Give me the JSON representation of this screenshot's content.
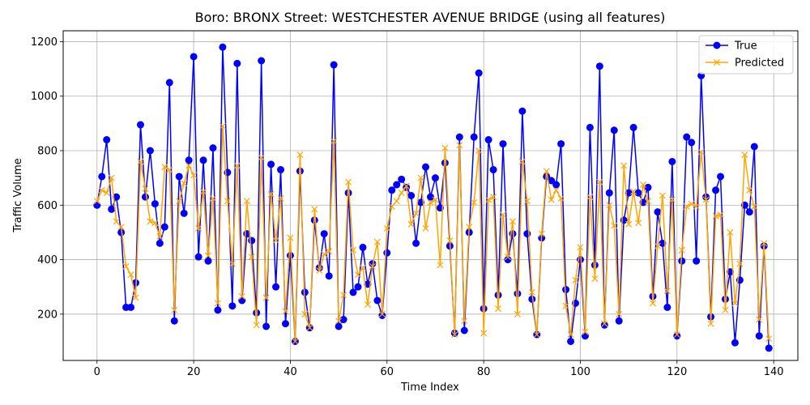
{
  "chart_data": {
    "type": "line",
    "title": "Boro: BRONX Street: WESTCHESTER AVENUE BRIDGE (using all features)",
    "xlabel": "Time Index",
    "ylabel": "Traffic Volume",
    "xlim": [
      -7,
      145
    ],
    "ylim": [
      30,
      1240
    ],
    "xticks": [
      0,
      20,
      40,
      60,
      80,
      100,
      120,
      140
    ],
    "yticks": [
      200,
      400,
      600,
      800,
      1000,
      1200
    ],
    "grid": true,
    "legend_position": "upper-right",
    "series": [
      {
        "name": "True",
        "color": "#0000ff",
        "marker": "circle",
        "values": [
          600,
          705,
          840,
          585,
          630,
          500,
          225,
          225,
          315,
          895,
          630,
          800,
          605,
          460,
          520,
          1050,
          175,
          705,
          570,
          765,
          1145,
          410,
          765,
          395,
          810,
          215,
          1180,
          720,
          230,
          1120,
          250,
          495,
          470,
          205,
          1130,
          155,
          750,
          300,
          730,
          165,
          415,
          100,
          725,
          280,
          150,
          545,
          370,
          495,
          340,
          1115,
          155,
          180,
          645,
          280,
          300,
          445,
          310,
          385,
          250,
          195,
          425,
          655,
          675,
          695,
          665,
          635,
          460,
          610,
          740,
          630,
          700,
          590,
          755,
          450,
          130,
          850,
          140,
          500,
          850,
          1085,
          220,
          840,
          730,
          270,
          825,
          400,
          495,
          275,
          945,
          495,
          255,
          125,
          480,
          705,
          690,
          675,
          825,
          290,
          100,
          240,
          400,
          120,
          885,
          380,
          1110,
          160,
          645,
          875,
          175,
          545,
          645,
          885,
          645,
          610,
          665,
          265,
          575,
          460,
          225,
          760,
          120,
          395,
          850,
          830,
          395,
          1075,
          630,
          190,
          655,
          705,
          255,
          355,
          95,
          325,
          600,
          575,
          815,
          120,
          450,
          75
        ]
      },
      {
        "name": "Predicted",
        "color": "#ffa500",
        "marker": "x",
        "values": [
          615,
          655,
          645,
          700,
          540,
          520,
          375,
          345,
          260,
          760,
          660,
          540,
          535,
          485,
          740,
          730,
          215,
          615,
          680,
          745,
          710,
          515,
          650,
          415,
          625,
          240,
          890,
          615,
          385,
          745,
          265,
          615,
          410,
          160,
          775,
          260,
          640,
          470,
          625,
          210,
          480,
          100,
          785,
          200,
          150,
          585,
          360,
          420,
          430,
          835,
          175,
          270,
          685,
          435,
          345,
          370,
          235,
          375,
          465,
          200,
          515,
          595,
          615,
          645,
          670,
          530,
          570,
          700,
          515,
          610,
          620,
          380,
          810,
          470,
          125,
          820,
          175,
          520,
          610,
          800,
          130,
          620,
          630,
          220,
          565,
          410,
          540,
          200,
          760,
          615,
          280,
          125,
          495,
          725,
          620,
          655,
          625,
          230,
          125,
          325,
          445,
          135,
          630,
          330,
          685,
          165,
          600,
          525,
          200,
          745,
          530,
          650,
          535,
          675,
          615,
          240,
          450,
          635,
          285,
          620,
          125,
          435,
          595,
          605,
          595,
          795,
          620,
          165,
          560,
          565,
          215,
          500,
          240,
          385,
          785,
          655,
          595,
          180,
          460,
          110
        ]
      }
    ]
  }
}
